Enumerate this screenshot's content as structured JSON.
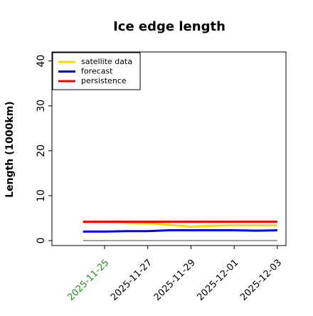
{
  "chart_data": {
    "type": "line",
    "title": "Ice edge length",
    "ylabel": "Length (1000km)",
    "x": [
      "2025-11-24",
      "2025-11-25",
      "2025-11-26",
      "2025-11-27",
      "2025-11-28",
      "2025-11-29",
      "2025-11-30",
      "2025-12-01",
      "2025-12-02",
      "2025-12-03"
    ],
    "series": [
      {
        "name": "satellite data",
        "color": "#ffd700",
        "values": [
          4.1,
          4.1,
          4.0,
          3.9,
          3.5,
          3.1,
          3.3,
          3.4,
          3.4,
          3.4
        ]
      },
      {
        "name": "forecast",
        "color": "#0000ff",
        "values": [
          2.0,
          2.0,
          2.1,
          2.1,
          2.3,
          2.3,
          2.3,
          2.3,
          2.2,
          2.3
        ]
      },
      {
        "name": "persistence",
        "color": "#ff0000",
        "values": [
          4.2,
          4.2,
          4.2,
          4.2,
          4.2,
          4.2,
          4.2,
          4.2,
          4.2,
          4.2
        ]
      }
    ],
    "hline": 0,
    "hline_color": "#808080",
    "ylim": [
      -1.1,
      42
    ],
    "yticks": [
      0,
      10,
      20,
      30,
      40
    ],
    "xticks": [
      "2025-11-25",
      "2025-11-27",
      "2025-11-29",
      "2025-12-01",
      "2025-12-03"
    ],
    "xtick_colors": [
      "#228b22",
      "#000000",
      "#000000",
      "#000000",
      "#000000"
    ],
    "legend": "upper left",
    "grid": false
  }
}
